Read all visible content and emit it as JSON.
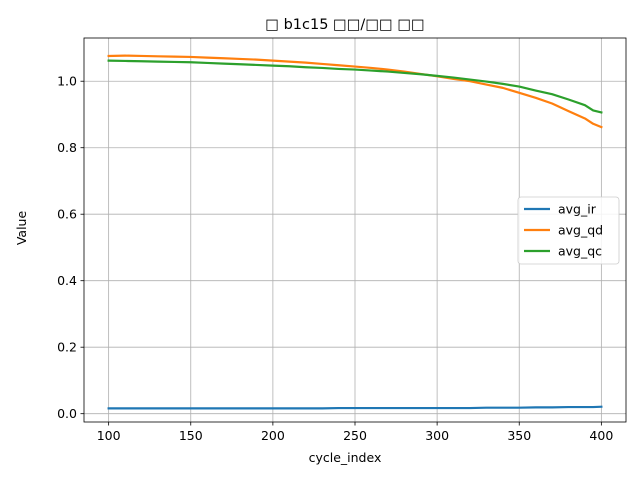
{
  "chart_data": {
    "type": "line",
    "title": "□ b1c15 □□/□□ □□",
    "xlabel": "cycle_index",
    "ylabel": "Value",
    "xlim": [
      85,
      415
    ],
    "ylim": [
      -0.025,
      1.13
    ],
    "x_ticks": [
      "100",
      "150",
      "200",
      "250",
      "300",
      "350",
      "400"
    ],
    "y_ticks": [
      "0.0",
      "0.2",
      "0.4",
      "0.6",
      "0.8",
      "1.0"
    ],
    "grid": true,
    "legend_position": "center-right",
    "x": [
      100,
      110,
      120,
      130,
      140,
      150,
      160,
      170,
      180,
      190,
      200,
      210,
      220,
      230,
      240,
      250,
      260,
      270,
      280,
      290,
      300,
      310,
      320,
      330,
      340,
      350,
      360,
      370,
      380,
      390,
      395,
      400
    ],
    "series": [
      {
        "name": "avg_ir",
        "color": "#1f77b4",
        "values": [
          0.016,
          0.016,
          0.016,
          0.016,
          0.016,
          0.016,
          0.016,
          0.016,
          0.016,
          0.016,
          0.016,
          0.016,
          0.016,
          0.016,
          0.017,
          0.017,
          0.017,
          0.017,
          0.017,
          0.017,
          0.017,
          0.017,
          0.017,
          0.018,
          0.018,
          0.018,
          0.019,
          0.019,
          0.02,
          0.02,
          0.02,
          0.021
        ]
      },
      {
        "name": "avg_qd",
        "color": "#ff7f0e",
        "values": [
          1.076,
          1.077,
          1.076,
          1.075,
          1.074,
          1.073,
          1.071,
          1.069,
          1.067,
          1.065,
          1.062,
          1.059,
          1.056,
          1.052,
          1.048,
          1.044,
          1.04,
          1.035,
          1.029,
          1.022,
          1.015,
          1.007,
          1.0,
          0.99,
          0.98,
          0.965,
          0.95,
          0.933,
          0.91,
          0.888,
          0.872,
          0.862
        ]
      },
      {
        "name": "avg_qc",
        "color": "#2ca02c",
        "values": [
          1.062,
          1.061,
          1.06,
          1.059,
          1.058,
          1.057,
          1.055,
          1.053,
          1.051,
          1.049,
          1.047,
          1.045,
          1.042,
          1.04,
          1.037,
          1.035,
          1.032,
          1.029,
          1.025,
          1.021,
          1.016,
          1.011,
          1.005,
          0.999,
          0.992,
          0.984,
          0.972,
          0.961,
          0.945,
          0.928,
          0.912,
          0.906
        ]
      }
    ]
  }
}
